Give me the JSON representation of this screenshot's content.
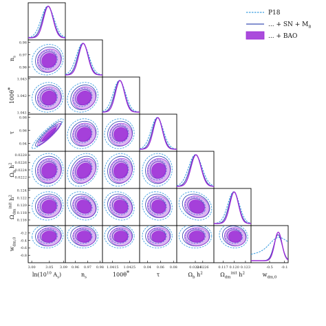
{
  "chart_data": {
    "type": "corner",
    "parameters": [
      {
        "label": "ln(10^{10} A_s)",
        "mean": 3.045,
        "sigma": 0.015,
        "range": [
          2.99,
          3.095
        ],
        "ticks": [
          "3.00",
          "3.05",
          "3.09"
        ],
        "tick_values": [
          3.0,
          3.05,
          3.09
        ]
      },
      {
        "label": "n_s",
        "mean": 0.966,
        "sigma": 0.0042,
        "range": [
          0.952,
          0.982
        ],
        "ticks": [
          "0.96",
          "0.97",
          "0.98"
        ],
        "tick_values": [
          0.96,
          0.97,
          0.98
        ]
      },
      {
        "label": "100θ_*",
        "mean": 1.0419,
        "sigma": 0.0003,
        "range": [
          1.0409,
          1.0431
        ],
        "ticks": [
          "1.0415",
          "1.0425"
        ],
        "tick_values": [
          1.0415,
          1.0425
        ],
        "row_ticks": [
          "1.043",
          "1.042",
          "1.041"
        ],
        "row_tick_values": [
          1.043,
          1.042,
          1.041
        ]
      },
      {
        "label": "τ",
        "mean": 0.055,
        "sigma": 0.0078,
        "range": [
          0.028,
          0.085
        ],
        "ticks": [
          "0.04",
          "0.06",
          "0.08"
        ],
        "tick_values": [
          0.04,
          0.06,
          0.08
        ]
      },
      {
        "label": "Ω_b h^2",
        "mean": 0.0224,
        "sigma": 0.00015,
        "range": [
          0.0219,
          0.0229
        ],
        "ticks": [
          "0.0224",
          "0.0226"
        ],
        "tick_values": [
          0.0224,
          0.0226
        ],
        "row_ticks": [
          "0.0228",
          "0.0226",
          "0.0224",
          "0.0222"
        ],
        "row_tick_values": [
          0.0228,
          0.0226,
          0.0224,
          0.0222
        ]
      },
      {
        "label": "Ω_dm^init h^2",
        "mean": 0.1198,
        "sigma": 0.0013,
        "range": [
          0.1145,
          0.1245
        ],
        "ticks": [
          "0.117",
          "0.120",
          "0.123"
        ],
        "tick_values": [
          0.117,
          0.12,
          0.123
        ],
        "row_ticks": [
          "0.124",
          "0.122",
          "0.120",
          "0.118",
          "0.116"
        ],
        "row_tick_values": [
          0.124,
          0.122,
          0.12,
          0.118,
          0.116
        ]
      },
      {
        "label": "w_dm,0",
        "mean": -0.28,
        "sigma": 0.11,
        "range": [
          -1.0,
          0.0
        ],
        "ticks": [
          "-0.5",
          "-0.1"
        ],
        "tick_values": [
          -0.5,
          -0.1
        ],
        "row_ticks": [
          "-0.2",
          "-0.4",
          "-0.6",
          "-0.8"
        ],
        "row_tick_values": [
          -0.2,
          -0.4,
          -0.6,
          -0.8
        ]
      }
    ],
    "series": [
      {
        "name": "P18",
        "color": "#3c9ee0",
        "style": "dashed"
      },
      {
        "name": "... + SN + M_B",
        "color": "#3a4fb4",
        "style": "solid"
      },
      {
        "name": "... + BAO",
        "color": "#9b2bd6",
        "style": "filled"
      }
    ],
    "correlations": [
      [
        0,
        0.1,
        0.05,
        0.93,
        0.05,
        0.05,
        0.05
      ],
      [
        0.1,
        0,
        0.15,
        0.1,
        0.25,
        -0.2,
        -0.05
      ],
      [
        0.05,
        0.15,
        0,
        0.05,
        0.1,
        -0.15,
        0.0
      ],
      [
        0.93,
        0.1,
        0.05,
        0,
        0.05,
        -0.1,
        0.0
      ],
      [
        0.05,
        0.25,
        0.1,
        0.05,
        0,
        -0.2,
        0.0
      ],
      [
        0.05,
        -0.2,
        -0.15,
        -0.1,
        -0.2,
        0,
        -0.1
      ],
      [
        0.05,
        -0.05,
        0.0,
        0.0,
        0.0,
        -0.1,
        0
      ]
    ],
    "legend_position": "top-right"
  }
}
